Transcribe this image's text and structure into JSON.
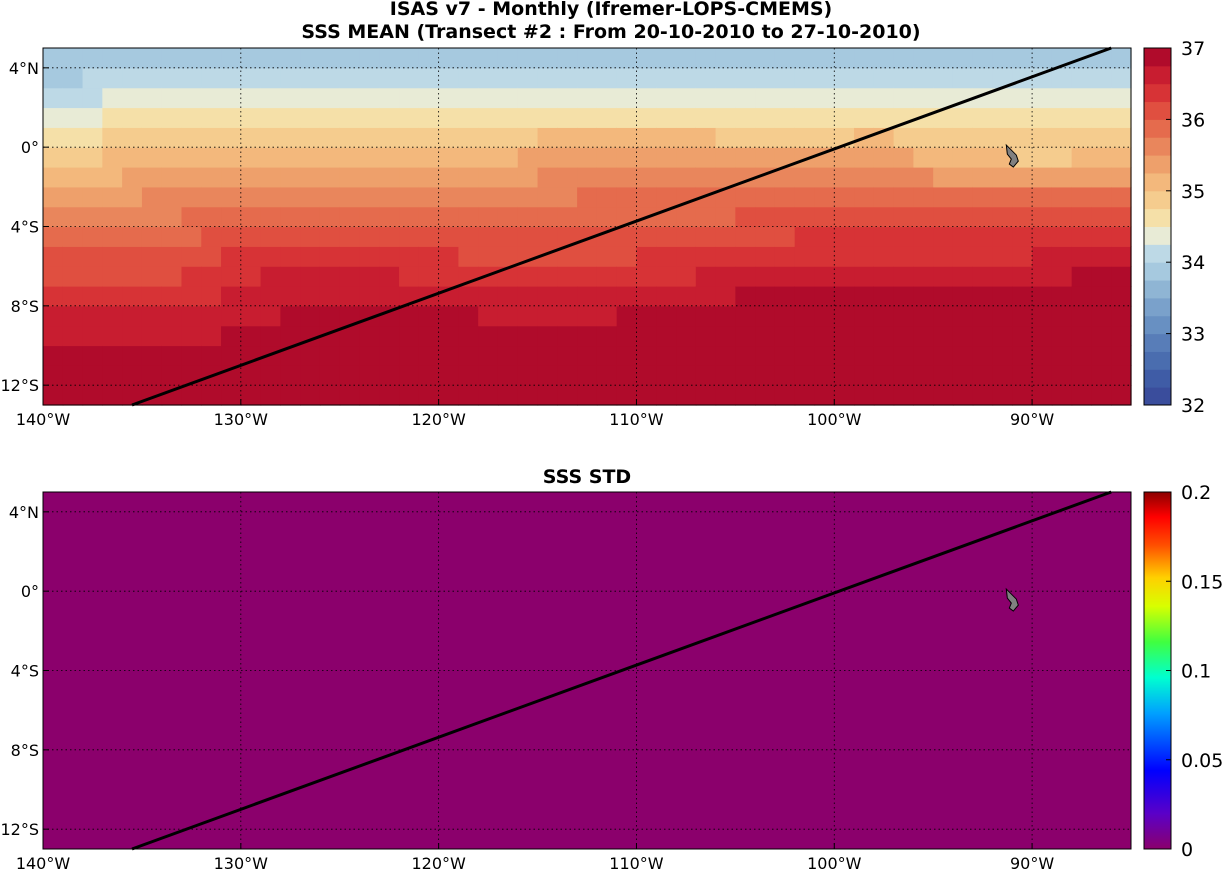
{
  "figure": {
    "title_line1": "ISAS v7 - Monthly (Ifremer-LOPS-CMEMS)",
    "title_line2": "SSS MEAN (Transect #2 : From 20-10-2010 to 27-10-2010)"
  },
  "maps": [
    {
      "id": "sss-mean",
      "title": "",
      "variable": "SSS MEAN",
      "colorbar": {
        "range": [
          32,
          37
        ],
        "ticks": [
          "32",
          "33",
          "34",
          "35",
          "36",
          "37"
        ],
        "colormap": "red-yellow-blue (reversed)",
        "levels": 20
      },
      "field_description": "salinity field: ~33 in the north-east, rising to ~36.5 in the south-west"
    },
    {
      "id": "sss-std",
      "title": "SSS STD",
      "variable": "SSS STD",
      "colorbar": {
        "range": [
          0,
          0.2
        ],
        "ticks": [
          "0",
          "0.05",
          "0.1",
          "0.15",
          "0.2"
        ],
        "colormap": "jet (purple to dark red)"
      },
      "field_value": 0,
      "field_color": "#8B006C"
    }
  ],
  "axes": {
    "lon_ticks": [
      "140°W",
      "130°W",
      "120°W",
      "110°W",
      "100°W",
      "90°W"
    ],
    "lat_ticks": [
      "4°N",
      "0°",
      "4°S",
      "8°S",
      "12°S"
    ],
    "lon_range": [
      -140,
      -85
    ],
    "lat_range": [
      -13,
      5
    ]
  },
  "transect": {
    "start": {
      "lon": -135.5,
      "lat": -13
    },
    "end": {
      "lon": -86,
      "lat": 5
    },
    "color": "#000000"
  },
  "island": {
    "name": "Galapagos",
    "lon": -91,
    "lat": -0.5,
    "color": "#808080"
  }
}
